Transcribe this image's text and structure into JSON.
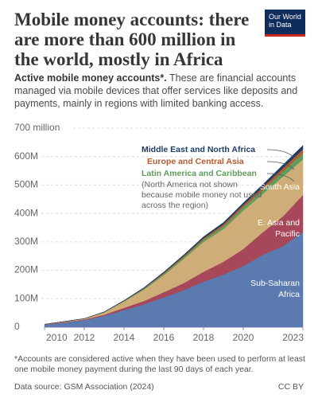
{
  "header": {
    "title": "Mobile money accounts: there are more than 600 million in the world, mostly in Africa",
    "subtitle_bold": "Active mobile money accounts*.",
    "subtitle": "These are financial accounts managed via mobile devices that offer services like deposits and payments, mainly in regions with limited banking access.",
    "logo": "Our World in Data"
  },
  "chart_data": {
    "type": "stacked_area",
    "x": [
      2010,
      2011,
      2012,
      2013,
      2014,
      2015,
      2016,
      2017,
      2018,
      2019,
      2020,
      2021,
      2022,
      2023
    ],
    "xlim": [
      2010,
      2023
    ],
    "xticks": [
      2010,
      2012,
      2014,
      2016,
      2018,
      2020,
      2023
    ],
    "ylim": [
      0,
      700
    ],
    "yticks": [
      0,
      {
        "value": 100,
        "label": "100M"
      },
      {
        "value": 200,
        "label": "200M"
      },
      {
        "value": 300,
        "label": "300M"
      },
      {
        "value": 400,
        "label": "400M"
      },
      {
        "value": 500,
        "label": "500M"
      },
      {
        "value": 600,
        "label": "600M"
      },
      {
        "value": 700,
        "label": "700 million"
      }
    ],
    "grid": true,
    "series": [
      {
        "name": "Sub-Saharan Africa",
        "color": "#5b7bb0",
        "values": [
          8,
          16,
          25,
          40,
          60,
          80,
          105,
          130,
          160,
          185,
          215,
          255,
          285,
          335
        ]
      },
      {
        "name": "E. Asia and Pacific",
        "color": "#a6475a",
        "values": [
          1,
          2,
          2,
          4,
          8,
          12,
          18,
          25,
          35,
          45,
          60,
          80,
          105,
          130
        ]
      },
      {
        "name": "South Asia",
        "color": "#cfad79",
        "values": [
          1,
          2,
          3,
          8,
          22,
          40,
          60,
          85,
          105,
          115,
          135,
          135,
          140,
          125
        ]
      },
      {
        "name": "Latin America and Caribbean",
        "color": "#5e9d5e",
        "values": [
          0,
          0,
          0,
          1,
          2,
          3,
          5,
          6,
          8,
          10,
          12,
          14,
          18,
          22
        ]
      },
      {
        "name": "Europe and Central Asia",
        "color": "#b85a30",
        "values": [
          0,
          0,
          0,
          0,
          1,
          2,
          3,
          4,
          5,
          7,
          8,
          10,
          12,
          14
        ]
      },
      {
        "name": "Middle East and North Africa",
        "color": "#1d3d63",
        "values": [
          0,
          0,
          0,
          1,
          1,
          2,
          3,
          4,
          5,
          6,
          7,
          9,
          11,
          13
        ]
      }
    ],
    "annotation": "(North America not shown because mobile money not used across the region)"
  },
  "footer": {
    "note": "*Accounts are considered active when they have been used to perform at least one mobile money payment during the last 90 days of each year.",
    "source": "Data source: GSM Association (2024)",
    "license": "CC BY"
  }
}
